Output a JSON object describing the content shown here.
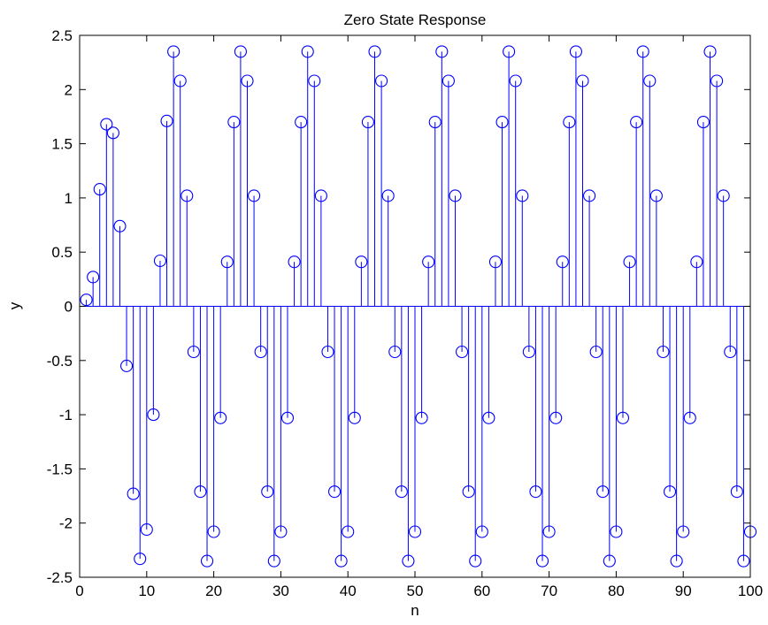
{
  "chart_data": {
    "type": "stem",
    "title": "Zero State Response",
    "xlabel": "n",
    "ylabel": "y",
    "xlim": [
      0,
      100
    ],
    "ylim": [
      -2.5,
      2.5
    ],
    "xticks": [
      0,
      10,
      20,
      30,
      40,
      50,
      60,
      70,
      80,
      90,
      100
    ],
    "yticks": [
      -2.5,
      -2,
      -1.5,
      -1,
      -0.5,
      0,
      0.5,
      1,
      1.5,
      2,
      2.5
    ],
    "xtick_labels": [
      "0",
      "10",
      "20",
      "30",
      "40",
      "50",
      "60",
      "70",
      "80",
      "90",
      "100"
    ],
    "ytick_labels": [
      "-2.5",
      "-2",
      "-1.5",
      "-1",
      "-0.5",
      "0",
      "0.5",
      "1",
      "1.5",
      "2",
      "2.5"
    ],
    "grid": false,
    "series": [
      {
        "color": "#0000ff",
        "marker": "circle",
        "x": [
          1,
          2,
          3,
          4,
          5,
          6,
          7,
          8,
          9,
          10,
          11,
          12,
          13,
          14,
          15,
          16,
          17,
          18,
          19,
          20,
          21,
          22,
          23,
          24,
          25,
          26,
          27,
          28,
          29,
          30,
          31,
          32,
          33,
          34,
          35,
          36,
          37,
          38,
          39,
          40,
          41,
          42,
          43,
          44,
          45,
          46,
          47,
          48,
          49,
          50,
          51,
          52,
          53,
          54,
          55,
          56,
          57,
          58,
          59,
          60,
          61,
          62,
          63,
          64,
          65,
          66,
          67,
          68,
          69,
          70,
          71,
          72,
          73,
          74,
          75,
          76,
          77,
          78,
          79,
          80,
          81,
          82,
          83,
          84,
          85,
          86,
          87,
          88,
          89,
          90,
          91,
          92,
          93,
          94,
          95,
          96,
          97,
          98,
          99,
          100
        ],
        "y": [
          0.06,
          0.27,
          1.08,
          1.68,
          1.6,
          0.74,
          -0.55,
          -1.73,
          -2.33,
          -2.06,
          -1.0,
          0.42,
          1.71,
          2.35,
          2.08,
          1.02,
          -0.42,
          -1.71,
          -2.35,
          -2.08,
          -1.03,
          0.41,
          1.7,
          2.35,
          2.08,
          1.02,
          -0.42,
          -1.71,
          -2.35,
          -2.08,
          -1.03,
          0.41,
          1.7,
          2.35,
          2.08,
          1.02,
          -0.42,
          -1.71,
          -2.35,
          -2.08,
          -1.03,
          0.41,
          1.7,
          2.35,
          2.08,
          1.02,
          -0.42,
          -1.71,
          -2.35,
          -2.08,
          -1.03,
          0.41,
          1.7,
          2.35,
          2.08,
          1.02,
          -0.42,
          -1.71,
          -2.35,
          -2.08,
          -1.03,
          0.41,
          1.7,
          2.35,
          2.08,
          1.02,
          -0.42,
          -1.71,
          -2.35,
          -2.08,
          -1.03,
          0.41,
          1.7,
          2.35,
          2.08,
          1.02,
          -0.42,
          -1.71,
          -2.35,
          -2.08,
          -1.03,
          0.41,
          1.7,
          2.35,
          2.08,
          1.02,
          -0.42,
          -1.71,
          -2.35,
          -2.08,
          -1.03,
          0.41,
          1.7,
          2.35,
          2.08,
          1.02,
          -0.42,
          -1.71,
          -2.35,
          -2.08
        ]
      }
    ]
  }
}
